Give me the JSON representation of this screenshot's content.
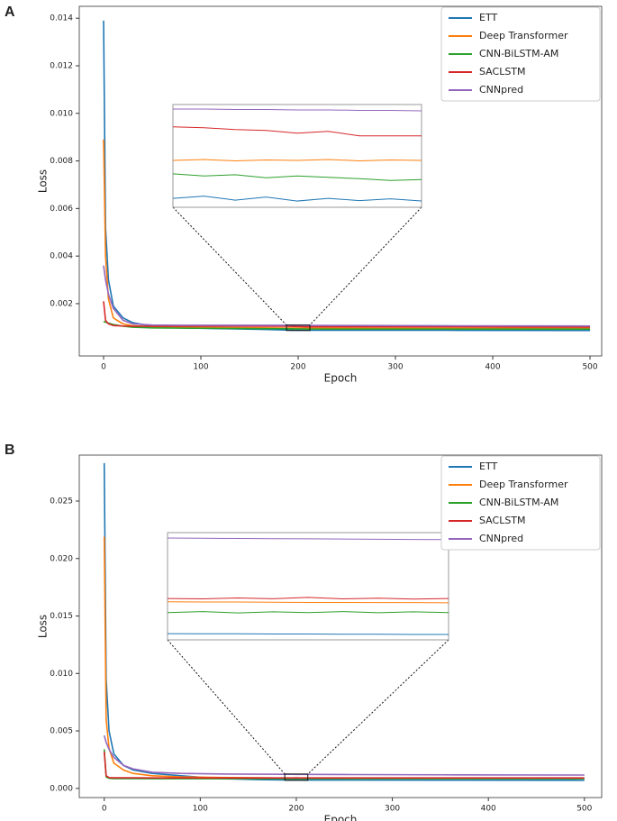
{
  "chart_data": [
    {
      "type": "line",
      "panel_label": "A",
      "xlabel": "Epoch",
      "ylabel": "Loss",
      "x": [
        0,
        2,
        5,
        10,
        20,
        30,
        50,
        80,
        120,
        160,
        188,
        191,
        194,
        197,
        200,
        203,
        206,
        209,
        212,
        260,
        350,
        500
      ],
      "xlim": [
        -25,
        512
      ],
      "ylim": [
        -0.0002,
        0.0145
      ],
      "xticks": [
        0,
        100,
        200,
        300,
        400,
        500
      ],
      "yticks": [
        0.002,
        0.004,
        0.006,
        0.008,
        {
          "value": 0.01,
          "label": "0.010"
        },
        0.012,
        0.014
      ],
      "legend": "upper right",
      "inset": {
        "xlim": [
          188,
          212
        ],
        "ylim": [
          0.00087,
          0.0011
        ]
      },
      "series": [
        {
          "name": "ETT",
          "color": "#1f77b4",
          "values": [
            0.0139,
            0.0052,
            0.003,
            0.0019,
            0.0014,
            0.0012,
            0.00105,
            0.00098,
            0.00095,
            0.00092,
            0.00089,
            0.000895,
            0.000886,
            0.000893,
            0.000884,
            0.00089,
            0.000885,
            0.000889,
            0.000884,
            0.00088,
            0.00088,
            0.00087
          ]
        },
        {
          "name": "Deep Transformer",
          "color": "#ff7f0e",
          "values": [
            0.0089,
            0.004,
            0.0022,
            0.0014,
            0.00115,
            0.00107,
            0.00102,
            0.001,
            0.00099,
            0.00098,
            0.000975,
            0.000977,
            0.000974,
            0.000976,
            0.000975,
            0.000977,
            0.000974,
            0.000976,
            0.000975,
            0.00097,
            0.00097,
            0.00097
          ]
        },
        {
          "name": "CNN-BiLSTM-AM",
          "color": "#2ca02c",
          "values": [
            0.00125,
            0.00122,
            0.00118,
            0.00112,
            0.00105,
            0.00101,
            0.00098,
            0.00097,
            0.00096,
            0.00095,
            0.000945,
            0.00094,
            0.000943,
            0.000936,
            0.00094,
            0.000937,
            0.000934,
            0.00093,
            0.000932,
            0.00093,
            0.00093,
            0.00093
          ]
        },
        {
          "name": "SACLSTM",
          "color": "#d62728",
          "values": [
            0.0021,
            0.0013,
            0.00115,
            0.00108,
            0.00106,
            0.00105,
            0.00105,
            0.00105,
            0.00105,
            0.00105,
            0.00105,
            0.001048,
            0.001044,
            0.001042,
            0.001036,
            0.00104,
            0.00103,
            0.00103,
            0.00103,
            0.00103,
            0.00103,
            0.00102
          ]
        },
        {
          "name": "CNNpred",
          "color": "#9467bd",
          "values": [
            0.0036,
            0.003,
            0.0024,
            0.0018,
            0.0013,
            0.00115,
            0.0011,
            0.00109,
            0.00109,
            0.00109,
            0.00109,
            0.00109,
            0.001089,
            0.001089,
            0.001088,
            0.001088,
            0.001087,
            0.001087,
            0.001086,
            0.00108,
            0.00107,
            0.00106
          ]
        }
      ]
    },
    {
      "type": "line",
      "panel_label": "B",
      "xlabel": "Epoch",
      "ylabel": "Loss",
      "x": [
        0,
        2,
        5,
        10,
        20,
        30,
        50,
        80,
        120,
        160,
        188,
        191,
        194,
        197,
        200,
        203,
        206,
        209,
        212,
        260,
        350,
        500
      ],
      "xlim": [
        -26,
        518
      ],
      "ylim": [
        -0.0008,
        0.029
      ],
      "xticks": [
        0,
        100,
        200,
        300,
        400,
        500
      ],
      "yticks": [
        {
          "value": 0,
          "label": "0.000"
        },
        0.005,
        {
          "value": 0.01,
          "label": "0.010"
        },
        0.015,
        {
          "value": 0.02,
          "label": "0.020"
        },
        0.025
      ],
      "legend": "upper right",
      "inset": {
        "xlim": [
          188,
          212
        ],
        "ylim": [
          0.0007,
          0.00125
        ]
      },
      "series": [
        {
          "name": "ETT",
          "color": "#1f77b4",
          "values": [
            0.0283,
            0.0095,
            0.005,
            0.003,
            0.002,
            0.0016,
            0.0013,
            0.0011,
            0.00085,
            0.00076,
            0.000732,
            0.000731,
            0.000731,
            0.00073,
            0.00073,
            0.000729,
            0.000729,
            0.000728,
            0.000728,
            0.00072,
            0.00071,
            0.0007
          ]
        },
        {
          "name": "Deep Transformer",
          "color": "#ff7f0e",
          "values": [
            0.0219,
            0.006,
            0.0035,
            0.0022,
            0.0016,
            0.0013,
            0.0011,
            0.001,
            0.00095,
            0.00092,
            0.000895,
            0.000894,
            0.000894,
            0.000893,
            0.000892,
            0.000892,
            0.000891,
            0.000891,
            0.00089,
            0.00088,
            0.00087,
            0.00086
          ]
        },
        {
          "name": "CNN-BiLSTM-AM",
          "color": "#2ca02c",
          "values": [
            0.0034,
            0.001,
            0.00088,
            0.00085,
            0.00085,
            0.00085,
            0.00084,
            0.00084,
            0.00084,
            0.00084,
            0.00084,
            0.000845,
            0.000838,
            0.000844,
            0.00084,
            0.000845,
            0.000839,
            0.000844,
            0.00084,
            0.00084,
            0.00084,
            0.00084
          ]
        },
        {
          "name": "SACLSTM",
          "color": "#d62728",
          "values": [
            0.0032,
            0.0011,
            0.00094,
            0.00092,
            0.00092,
            0.00092,
            0.00091,
            0.00091,
            0.00091,
            0.00091,
            0.000912,
            0.00091,
            0.000915,
            0.000911,
            0.000918,
            0.00091,
            0.000914,
            0.000909,
            0.000912,
            0.00091,
            0.00091,
            0.00091
          ]
        },
        {
          "name": "CNNpred",
          "color": "#9467bd",
          "values": [
            0.0046,
            0.004,
            0.0034,
            0.0027,
            0.002,
            0.0017,
            0.0014,
            0.0013,
            0.00125,
            0.00123,
            0.001222,
            0.001221,
            0.00122,
            0.001219,
            0.001218,
            0.001217,
            0.001216,
            0.001215,
            0.001214,
            0.0012,
            0.00118,
            0.00116
          ]
        }
      ]
    }
  ]
}
